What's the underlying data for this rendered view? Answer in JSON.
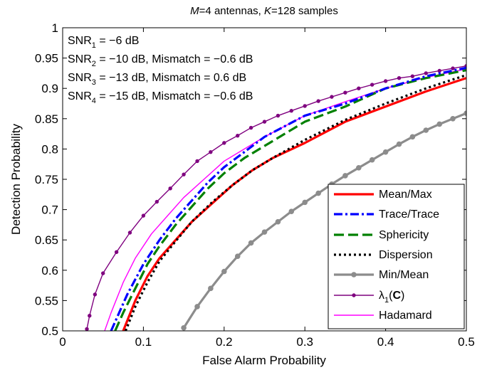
{
  "chart_data": {
    "type": "line",
    "title": {
      "pre": "",
      "M": "M",
      "mid": "=4 antennas, ",
      "K": "K",
      "post": "=128 samples"
    },
    "xlabel": "False Alarm Probability",
    "ylabel": "Detection Probability",
    "xlim": [
      0,
      0.5
    ],
    "ylim": [
      0.5,
      1.0
    ],
    "xticks": [
      0,
      0.1,
      0.2,
      0.3,
      0.4,
      0.5
    ],
    "xtick_labels": [
      "0",
      "0.1",
      "0.2",
      "0.3",
      "0.4",
      "0.5"
    ],
    "yticks": [
      0.5,
      0.55,
      0.6,
      0.65,
      0.7,
      0.75,
      0.8,
      0.85,
      0.9,
      0.95,
      1.0
    ],
    "ytick_labels": [
      "0.5",
      "0.55",
      "0.6",
      "0.65",
      "0.7",
      "0.75",
      "0.8",
      "0.85",
      "0.9",
      "0.95",
      "1"
    ],
    "grid": false,
    "legend_position": "bottom-right",
    "annotations": [
      {
        "base": "SNR",
        "sub": "1",
        "rest": " = −6 dB"
      },
      {
        "base": "SNR",
        "sub": "2",
        "rest": " = −10 dB, Mismatch = −0.6 dB"
      },
      {
        "base": "SNR",
        "sub": "3",
        "rest": " = −13 dB, Mismatch = 0.6 dB"
      },
      {
        "base": "SNR",
        "sub": "4",
        "rest": " = −15 dB, Mismatch = −0.6 dB"
      }
    ],
    "series": [
      {
        "name": "Mean/Max",
        "color": "#ff0000",
        "width": 3.2,
        "dash": "",
        "marker": false,
        "x": [
          0.075,
          0.09,
          0.105,
          0.12,
          0.14,
          0.16,
          0.185,
          0.21,
          0.235,
          0.26,
          0.3,
          0.35,
          0.4,
          0.45,
          0.5
        ],
        "y": [
          0.5,
          0.55,
          0.59,
          0.62,
          0.65,
          0.68,
          0.71,
          0.74,
          0.765,
          0.785,
          0.81,
          0.845,
          0.87,
          0.895,
          0.917
        ]
      },
      {
        "name": "Trace/Trace",
        "color": "#0000ff",
        "width": 3.2,
        "dash": "12,4,3,4",
        "marker": false,
        "x": [
          0.06,
          0.07,
          0.08,
          0.1,
          0.12,
          0.14,
          0.16,
          0.18,
          0.2,
          0.225,
          0.25,
          0.3,
          0.35,
          0.4,
          0.45,
          0.5
        ],
        "y": [
          0.5,
          0.53,
          0.56,
          0.61,
          0.65,
          0.685,
          0.715,
          0.745,
          0.77,
          0.795,
          0.82,
          0.855,
          0.875,
          0.9,
          0.92,
          0.934
        ]
      },
      {
        "name": "Sphericity",
        "color": "#008000",
        "width": 3.2,
        "dash": "14,6",
        "marker": false,
        "x": [
          0.065,
          0.075,
          0.09,
          0.105,
          0.12,
          0.14,
          0.16,
          0.18,
          0.2,
          0.225,
          0.25,
          0.3,
          0.35,
          0.4,
          0.45,
          0.5
        ],
        "y": [
          0.5,
          0.53,
          0.57,
          0.61,
          0.64,
          0.675,
          0.705,
          0.735,
          0.76,
          0.785,
          0.805,
          0.845,
          0.87,
          0.9,
          0.917,
          0.93
        ]
      },
      {
        "name": "Dispersion",
        "color": "#000000",
        "width": 3.2,
        "dash": "3,4",
        "marker": false,
        "x": [
          0.078,
          0.09,
          0.105,
          0.12,
          0.14,
          0.16,
          0.185,
          0.21,
          0.235,
          0.26,
          0.3,
          0.35,
          0.4,
          0.45,
          0.5
        ],
        "y": [
          0.5,
          0.54,
          0.58,
          0.615,
          0.648,
          0.68,
          0.712,
          0.74,
          0.765,
          0.785,
          0.815,
          0.848,
          0.875,
          0.9,
          0.922
        ]
      },
      {
        "name": "Min/Mean",
        "color": "#8c8c8c",
        "width": 3.2,
        "dash": "",
        "marker": true,
        "marker_size": 3.3,
        "x": [
          0.15,
          0.1667,
          0.1833,
          0.2,
          0.2167,
          0.2333,
          0.25,
          0.2667,
          0.2833,
          0.3,
          0.3167,
          0.3333,
          0.35,
          0.3667,
          0.3833,
          0.4,
          0.4167,
          0.4333,
          0.45,
          0.4667,
          0.4833,
          0.5
        ],
        "y": [
          0.505,
          0.54,
          0.57,
          0.598,
          0.623,
          0.645,
          0.663,
          0.68,
          0.697,
          0.712,
          0.727,
          0.742,
          0.756,
          0.769,
          0.782,
          0.795,
          0.808,
          0.82,
          0.831,
          0.841,
          0.85,
          0.859
        ]
      },
      {
        "name": "λ1(C)",
        "legend_base": "λ",
        "legend_sub": "1",
        "legend_open": "(",
        "legend_bold": "C",
        "legend_close": ")",
        "color": "#7f007f",
        "width": 1.4,
        "dash": "",
        "marker": true,
        "marker_size": 2.2,
        "x": [
          0.03,
          0.0333,
          0.04,
          0.05,
          0.0667,
          0.0833,
          0.1,
          0.1167,
          0.1333,
          0.15,
          0.1667,
          0.1833,
          0.2,
          0.2167,
          0.2333,
          0.25,
          0.2667,
          0.2833,
          0.3,
          0.3167,
          0.3333,
          0.35,
          0.3667,
          0.3833,
          0.4,
          0.4167,
          0.4333,
          0.45,
          0.4667,
          0.4833,
          0.5
        ],
        "y": [
          0.503,
          0.525,
          0.56,
          0.595,
          0.63,
          0.662,
          0.69,
          0.713,
          0.735,
          0.758,
          0.78,
          0.795,
          0.81,
          0.822,
          0.835,
          0.845,
          0.855,
          0.863,
          0.871,
          0.879,
          0.886,
          0.893,
          0.9,
          0.906,
          0.912,
          0.917,
          0.92,
          0.925,
          0.929,
          0.933,
          0.937
        ]
      },
      {
        "name": "Hadamard",
        "color": "#ff00ff",
        "width": 1.4,
        "dash": "",
        "marker": false,
        "x": [
          0.052,
          0.06,
          0.075,
          0.09,
          0.11,
          0.13,
          0.15,
          0.175,
          0.2,
          0.225,
          0.25,
          0.3,
          0.35,
          0.4,
          0.45,
          0.5
        ],
        "y": [
          0.5,
          0.53,
          0.58,
          0.62,
          0.66,
          0.69,
          0.72,
          0.75,
          0.78,
          0.8,
          0.82,
          0.855,
          0.878,
          0.9,
          0.918,
          0.932
        ]
      }
    ]
  }
}
